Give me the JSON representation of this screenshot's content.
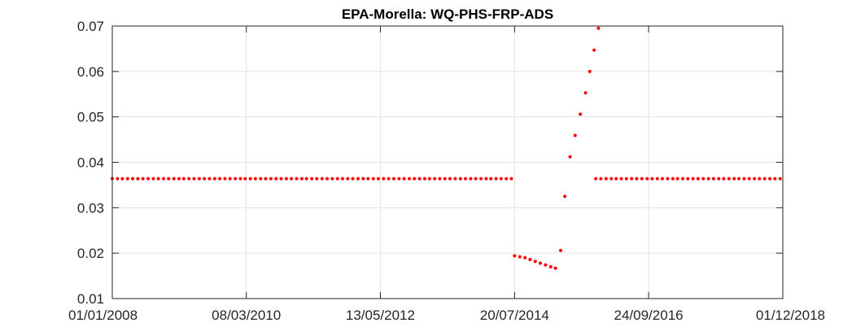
{
  "chart_data": {
    "type": "scatter",
    "title": "EPA-Morella: WQ-PHS-FRP-ADS",
    "xlabel": "",
    "ylabel": "",
    "x_axis": "date",
    "xlim": [
      "2008-01-01",
      "2018-12-01"
    ],
    "ylim": [
      0.01,
      0.07
    ],
    "x_ticks": [
      "2008-01-01",
      "2010-03-08",
      "2012-05-13",
      "2014-07-20",
      "2016-09-24",
      "2018-12-01"
    ],
    "x_tick_labels": [
      "01/01/2008",
      "08/03/2010",
      "13/05/2012",
      "20/07/2014",
      "24/09/2016",
      "01/12/2018"
    ],
    "y_ticks": [
      0.01,
      0.02,
      0.03,
      0.04,
      0.05,
      0.06,
      0.07
    ],
    "y_tick_labels": [
      "0.01",
      "0.02",
      "0.03",
      "0.04",
      "0.05",
      "0.06",
      "0.07"
    ],
    "grid": true,
    "marker_color": "#ff0000",
    "series": [
      {
        "constant_segments": [
          {
            "start": "2008-01-01",
            "end": "2014-07-20",
            "step": "month",
            "y": 0.0364
          },
          {
            "start": "2015-11-15",
            "end": "2018-12-01",
            "step": "month",
            "y": 0.0364
          }
        ],
        "points": [
          {
            "x": "2014-07-20",
            "y": 0.0194
          },
          {
            "x": "2014-08-20",
            "y": 0.0192
          },
          {
            "x": "2014-09-20",
            "y": 0.019
          },
          {
            "x": "2014-10-20",
            "y": 0.0186
          },
          {
            "x": "2014-11-20",
            "y": 0.0182
          },
          {
            "x": "2014-12-20",
            "y": 0.0178
          },
          {
            "x": "2015-01-20",
            "y": 0.0174
          },
          {
            "x": "2015-02-20",
            "y": 0.017
          },
          {
            "x": "2015-03-20",
            "y": 0.0167
          },
          {
            "x": "2015-04-20",
            "y": 0.0206
          },
          {
            "x": "2015-05-15",
            "y": 0.0325
          },
          {
            "x": "2015-06-15",
            "y": 0.0412
          },
          {
            "x": "2015-07-15",
            "y": 0.0459
          },
          {
            "x": "2015-08-15",
            "y": 0.0506
          },
          {
            "x": "2015-09-15",
            "y": 0.0553
          },
          {
            "x": "2015-10-10",
            "y": 0.06
          },
          {
            "x": "2015-11-05",
            "y": 0.0647
          },
          {
            "x": "2015-12-01",
            "y": 0.0695
          }
        ]
      }
    ]
  }
}
